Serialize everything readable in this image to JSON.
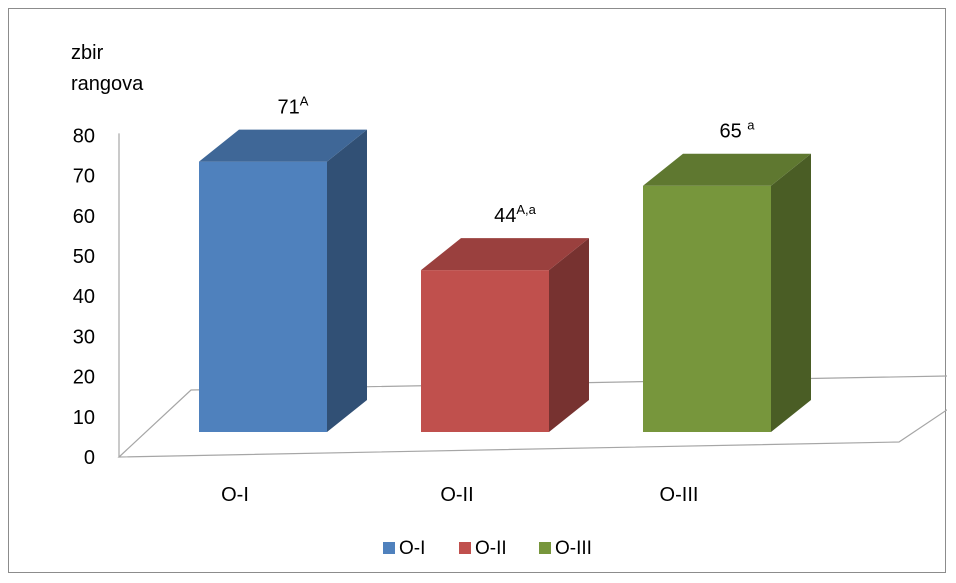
{
  "chart_data": {
    "type": "bar",
    "ylabel": "zbir rangova",
    "ylabel_lines": [
      "zbir",
      "rangova"
    ],
    "categories": [
      "O-I",
      "O-II",
      "O-III"
    ],
    "values": [
      71,
      44,
      65
    ],
    "data_labels": [
      {
        "value": "71",
        "sup": "A"
      },
      {
        "value": "44",
        "sup": "A,a"
      },
      {
        "value": "65 ",
        "sup": "a"
      }
    ],
    "colors": [
      "#4f81bd",
      "#c0504d",
      "#77963c"
    ],
    "ylim": [
      0,
      80
    ],
    "yticks": [
      "0",
      "10",
      "20",
      "30",
      "40",
      "50",
      "60",
      "70",
      "80"
    ],
    "grid": false,
    "three_d": true,
    "legend": {
      "position": "bottom",
      "entries": [
        "O-I",
        "O-II",
        "O-III"
      ]
    }
  }
}
